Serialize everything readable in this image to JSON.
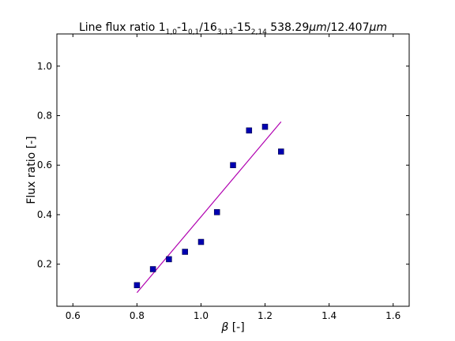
{
  "chart_data": {
    "type": "scatter",
    "title": {
      "prefix": "Line flux ratio 1",
      "sub1": "1,0",
      "mid1": "-1",
      "sub2": "0,1",
      "mid2": "/16",
      "sub3": "3,13",
      "mid3": "-15",
      "sub4": "2,14",
      "mid4": " 538.29",
      "unit1": "μm",
      "mid5": "/12.407",
      "unit2": "μm"
    },
    "xlabel_symbol": "β",
    "xlabel_rest": " [-]",
    "ylabel": "Flux ratio [-]",
    "xlim": [
      0.55,
      1.65
    ],
    "ylim": [
      0.03,
      1.13
    ],
    "xticks": [
      0.6,
      0.8,
      1.0,
      1.2,
      1.4,
      1.6
    ],
    "xtick_labels": [
      "0.6",
      "0.8",
      "1.0",
      "1.2",
      "1.4",
      "1.6"
    ],
    "yticks": [
      0.2,
      0.4,
      0.6,
      0.8,
      1.0
    ],
    "ytick_labels": [
      "0.2",
      "0.4",
      "0.6",
      "0.8",
      "1.0"
    ],
    "grid": false,
    "series": [
      {
        "type": "scatter",
        "marker": "square",
        "color": "#0000b0",
        "x": [
          0.8,
          0.85,
          0.9,
          0.95,
          1.0,
          1.05,
          1.1,
          1.15,
          1.2,
          1.25
        ],
        "y": [
          0.115,
          0.18,
          0.22,
          0.25,
          0.29,
          0.41,
          0.6,
          0.74,
          0.755,
          0.655
        ]
      },
      {
        "type": "line",
        "color": "#b000b0",
        "x": [
          0.8,
          1.25
        ],
        "y": [
          0.085,
          0.775
        ]
      }
    ]
  }
}
